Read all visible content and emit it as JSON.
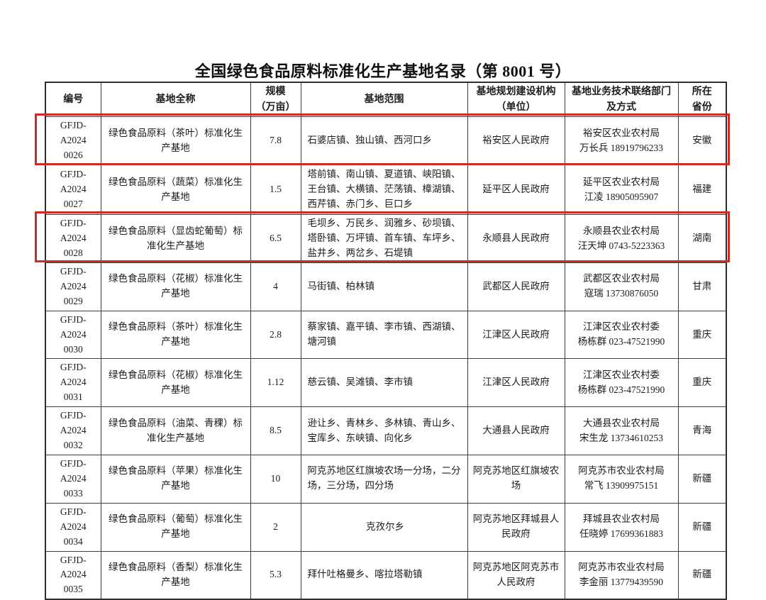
{
  "title": "全国绿色食品原料标准化生产基地名录（第 8001 号）",
  "colors": {
    "highlight": "#cc2b27",
    "border": "#3d3d3d",
    "text": "#1c1c1c"
  },
  "table": {
    "columns": [
      {
        "key": "id",
        "label": "编号"
      },
      {
        "key": "name",
        "label": "基地全称"
      },
      {
        "key": "scale",
        "label": "规模\n（万亩）"
      },
      {
        "key": "range",
        "label": "基地范围"
      },
      {
        "key": "org",
        "label": "基地规划建设机构\n（单位）"
      },
      {
        "key": "contact",
        "label": "基地业务技术联络部门\n及方式"
      },
      {
        "key": "province",
        "label": "所在\n省份"
      }
    ],
    "rows": [
      {
        "id": "GFJD-A2024\n0026",
        "name": "绿色食品原料（茶叶）标准化生产基地",
        "scale": "7.8",
        "range": "石婆店镇、独山镇、西河口乡",
        "org": "裕安区人民政府",
        "contact": "裕安区农业农村局\n万长兵 18919796233",
        "province": "安徽",
        "highlighted": true
      },
      {
        "id": "GFJD-A2024\n0027",
        "name": "绿色食品原料（蔬菜）标准化生产基地",
        "scale": "1.5",
        "range": "塔前镇、南山镇、夏道镇、峡阳镇、王台镇、大横镇、茫荡镇、樟湖镇、西芹镇、赤门乡、巨口乡",
        "org": "延平区人民政府",
        "contact": "延平区农业农村局\n江凌 18905095907",
        "province": "福建",
        "highlighted": false
      },
      {
        "id": "GFJD-A2024\n0028",
        "name": "绿色食品原料（显齿蛇葡萄）标准化生产基地",
        "scale": "6.5",
        "range": "毛坝乡、万民乡、润雅乡、砂坝镇、塔卧镇、万坪镇、首车镇、车坪乡、盐井乡、两岔乡、石堤镇",
        "org": "永顺县人民政府",
        "contact": "永顺县农业农村局\n汪天坤 0743-5223363",
        "province": "湖南",
        "highlighted": true
      },
      {
        "id": "GFJD-A2024\n0029",
        "name": "绿色食品原料（花椒）标准化生产基地",
        "scale": "4",
        "range": "马街镇、柏林镇",
        "org": "武都区人民政府",
        "contact": "武都区农业农村局\n寇瑞 13730876050",
        "province": "甘肃",
        "highlighted": false
      },
      {
        "id": "GFJD-A2024\n0030",
        "name": "绿色食品原料（茶叶）标准化生产基地",
        "scale": "2.8",
        "range": "蔡家镇、嘉平镇、李市镇、西湖镇、塘河镇",
        "org": "江津区人民政府",
        "contact": "江津区农业农村委\n杨栋群 023-47521990",
        "province": "重庆",
        "highlighted": false
      },
      {
        "id": "GFJD-A2024\n0031",
        "name": "绿色食品原料（花椒）标准化生产基地",
        "scale": "1.12",
        "range": "慈云镇、吴滩镇、李市镇",
        "org": "江津区人民政府",
        "contact": "江津区农业农村委\n杨栋群 023-47521990",
        "province": "重庆",
        "highlighted": false
      },
      {
        "id": "GFJD-A2024\n0032",
        "name": "绿色食品原料（油菜、青稞）标准化生产基地",
        "scale": "8.5",
        "range": "逊让乡、青林乡、多林镇、青山乡、宝库乡、东峡镇、向化乡",
        "org": "大通县人民政府",
        "contact": "大通县农业农村局\n宋生龙 13734610253",
        "province": "青海",
        "highlighted": false
      },
      {
        "id": "GFJD-A2024\n0033",
        "name": "绿色食品原料（苹果）标准化生产基地",
        "scale": "10",
        "range": "阿克苏地区红旗坡农场一分场，二分场，三分场，四分场",
        "org": "阿克苏地区红旗坡农场",
        "contact": "阿克苏市农业农村局\n常飞 13909975151",
        "province": "新疆",
        "highlighted": false
      },
      {
        "id": "GFJD-A2024\n0034",
        "name": "绿色食品原料（葡萄）标准化生产基地",
        "scale": "2",
        "range": "克孜尔乡",
        "org": "阿克苏地区拜城县人民政府",
        "contact": "拜城县农业农村局\n任晓婷 17699361883",
        "province": "新疆",
        "highlighted": false
      },
      {
        "id": "GFJD-A2024\n0035",
        "name": "绿色食品原料（香梨）标准化生产基地",
        "scale": "5.3",
        "range": "拜什吐格曼乡、喀拉塔勒镇",
        "org": "阿克苏地区阿克苏市人民政府",
        "contact": "阿克苏市农业农村局\n李金丽 13779439590",
        "province": "新疆",
        "highlighted": false
      }
    ]
  }
}
